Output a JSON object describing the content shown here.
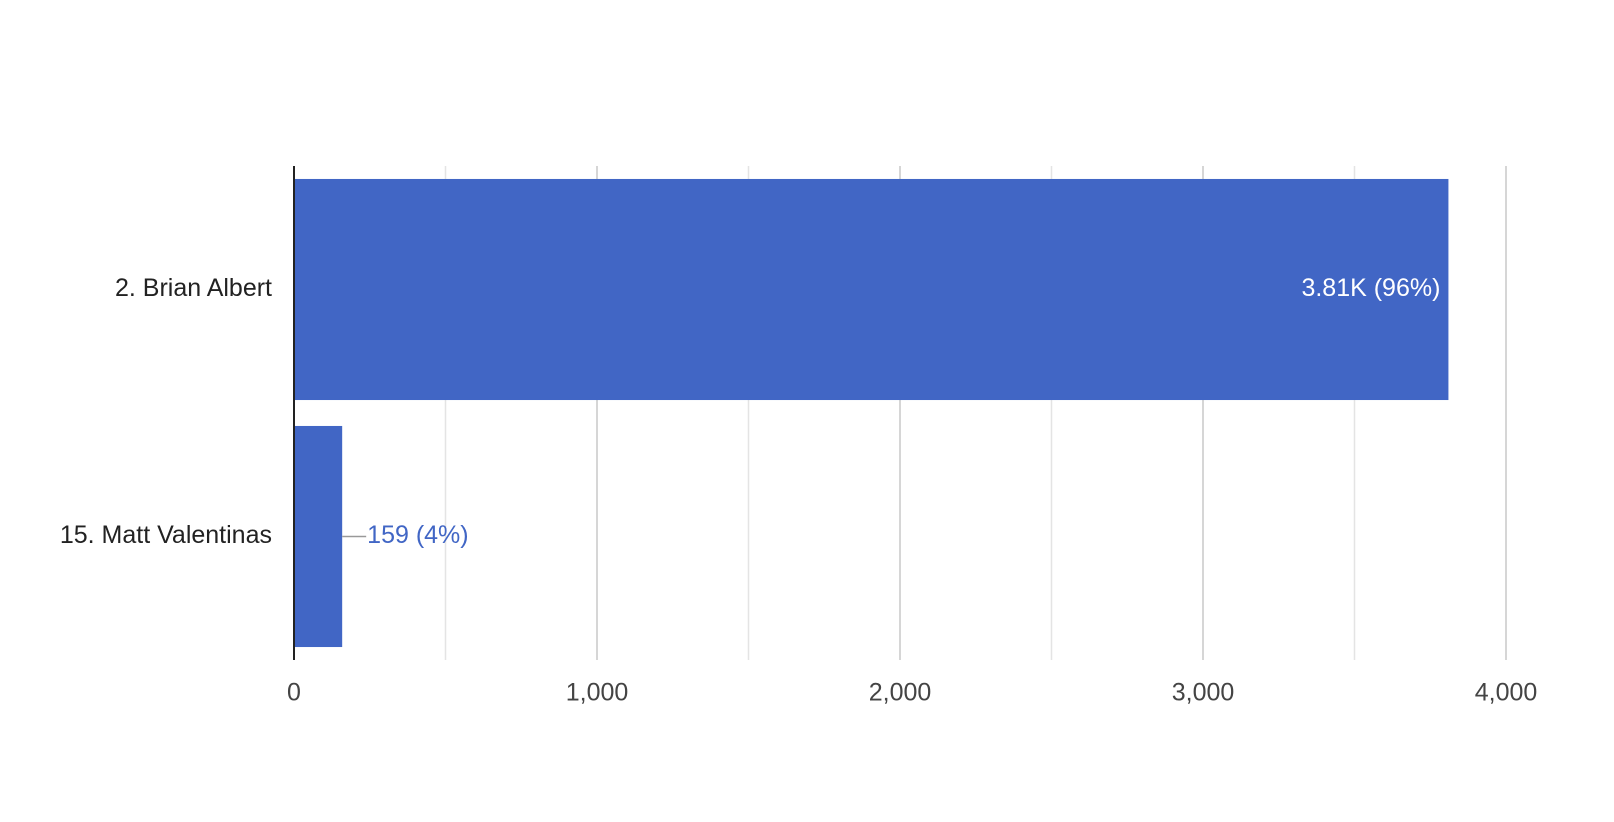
{
  "chart_data": {
    "type": "bar",
    "orientation": "horizontal",
    "categories": [
      "2. Brian Albert",
      "15. Matt Valentinas"
    ],
    "values": [
      3810,
      159
    ],
    "value_labels": [
      "3.81K (96%)",
      "159 (4%)"
    ],
    "color": "#4166c5",
    "xlim": [
      0,
      4000
    ],
    "xticks": [
      0,
      {
        "value": 1000,
        "label": "1,000"
      },
      {
        "value": 2000,
        "label": "2,000"
      },
      {
        "value": 3000,
        "label": "3,000"
      },
      {
        "value": 4000,
        "label": "4,000"
      }
    ],
    "minor_xticks": [
      500,
      1500,
      2500,
      3500
    ],
    "grid": true
  }
}
